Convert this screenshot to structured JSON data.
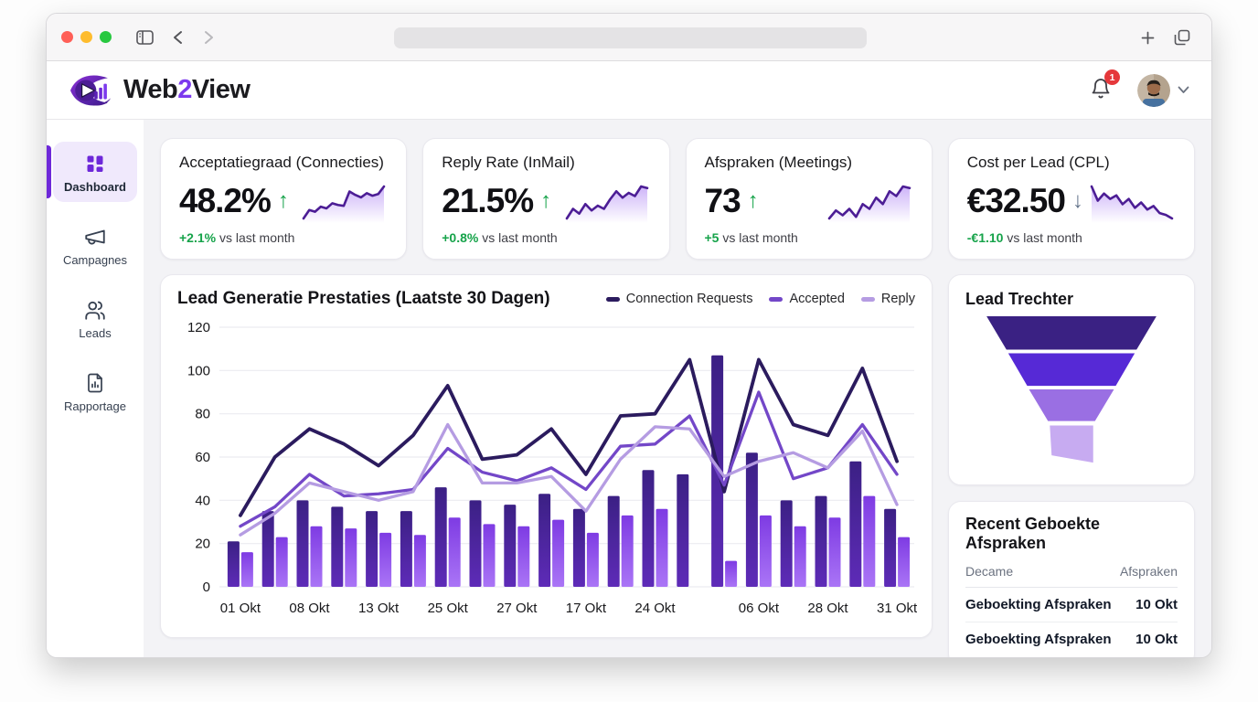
{
  "chrome": {
    "traffic_lights": [
      "close",
      "minimize",
      "zoom"
    ],
    "url_value": ""
  },
  "brand": {
    "word_start": "Web",
    "word_accent": "2",
    "word_end": "View"
  },
  "header": {
    "notification_count": "1"
  },
  "sidebar": {
    "items": [
      {
        "label": "Dashboard",
        "icon": "dashboard-grid",
        "active": true
      },
      {
        "label": "Campagnes",
        "icon": "megaphone",
        "active": false
      },
      {
        "label": "Leads",
        "icon": "users",
        "active": false
      },
      {
        "label": "Rapportage",
        "icon": "report-file",
        "active": false
      }
    ]
  },
  "kpis": [
    {
      "title": "Acceptatiegraad (Connecties)",
      "value": "48.2%",
      "trend": "up",
      "trend_arrow": "↑",
      "delta": "+2.1%",
      "delta_suffix": " vs last month",
      "spark": [
        20,
        30,
        28,
        34,
        32,
        38,
        36,
        35,
        52,
        48,
        45,
        50,
        47,
        49,
        58
      ]
    },
    {
      "title": "Reply Rate (InMail)",
      "value": "21.5%",
      "trend": "up",
      "trend_arrow": "↑",
      "delta": "+0.8%",
      "delta_suffix": " vs last month",
      "spark": [
        18,
        30,
        24,
        36,
        28,
        34,
        30,
        42,
        52,
        44,
        50,
        46,
        58,
        56
      ]
    },
    {
      "title": "Afspraken (Meetings)",
      "value": "73",
      "trend": "up",
      "trend_arrow": "↑",
      "delta": "+5",
      "delta_suffix": " vs last month",
      "spark": [
        22,
        32,
        26,
        34,
        24,
        40,
        34,
        48,
        40,
        56,
        50,
        62,
        60
      ]
    },
    {
      "title": "Cost per Lead (CPL)",
      "value": "€32.50",
      "trend": "down",
      "trend_arrow": "↓",
      "delta": "-€1.10",
      "delta_suffix": " vs last month",
      "spark": [
        66,
        50,
        58,
        52,
        56,
        46,
        52,
        42,
        48,
        40,
        44,
        36,
        34,
        30
      ]
    }
  ],
  "chart_data": {
    "type": "bar+line",
    "title": "Lead Generatie Prestaties (Laatste 30 Dagen)",
    "ylim": [
      0,
      120
    ],
    "y_ticks": [
      0,
      20,
      40,
      60,
      80,
      100,
      120
    ],
    "n_groups": 20,
    "x_tick_labels": [
      "01 Okt",
      "08 Okt",
      "13 Okt",
      "25 Okt",
      "27 Okt",
      "17 Okt",
      "24 Okt",
      "06 Okt",
      "28 Okt",
      "31 Okt"
    ],
    "x_tick_group_indices": [
      0,
      2,
      4,
      6,
      8,
      10,
      12,
      15,
      17,
      19
    ],
    "grid": "horizontal",
    "legend_position": "top-right",
    "bar_series": [
      {
        "name": "bars-dark",
        "color_top": "#3b2084",
        "color_bottom": "#5e2bb8",
        "values": [
          21,
          35,
          40,
          37,
          35,
          35,
          46,
          40,
          38,
          43,
          36,
          42,
          54,
          52,
          107,
          62,
          40,
          42,
          58,
          36
        ]
      },
      {
        "name": "bars-light",
        "color_top": "#7e3be3",
        "color_bottom": "#aa75f6",
        "values": [
          16,
          23,
          28,
          27,
          25,
          24,
          32,
          29,
          28,
          31,
          25,
          33,
          36,
          0,
          12,
          33,
          28,
          32,
          42,
          23
        ]
      }
    ],
    "line_series": [
      {
        "name": "Connection Requests",
        "color": "#2b1b5e",
        "values": [
          33,
          60,
          73,
          66,
          56,
          70,
          93,
          59,
          61,
          73,
          52,
          79,
          80,
          105,
          44,
          105,
          75,
          70,
          101,
          58
        ]
      },
      {
        "name": "Accepted",
        "color": "#7347c8",
        "values": [
          28,
          37,
          52,
          42,
          43,
          45,
          64,
          53,
          49,
          55,
          45,
          65,
          66,
          79,
          47,
          90,
          50,
          55,
          75,
          52
        ]
      },
      {
        "name": "Reply",
        "color": "#b59ce2",
        "values": [
          24,
          34,
          48,
          44,
          40,
          44,
          75,
          48,
          48,
          51,
          35,
          59,
          74,
          73,
          51,
          58,
          62,
          55,
          72,
          38
        ]
      }
    ]
  },
  "funnel": {
    "title": "Lead Trechter",
    "segment_colors": [
      "#3a2183",
      "#5629d6",
      "#9a6fe3",
      "#c7abf1"
    ]
  },
  "recent": {
    "title": "Recent Geboekte Afspraken",
    "columns": [
      "Decame",
      "Afspraken"
    ],
    "rows": [
      [
        "Geboekting Afspraken",
        "10 Okt"
      ],
      [
        "Geboekting Afspraken",
        "10 Okt"
      ]
    ]
  },
  "colors": {
    "accent": "#7c3aed",
    "positive": "#16a34a",
    "neutral_down": "#64748b",
    "badge": "#e5383b"
  }
}
